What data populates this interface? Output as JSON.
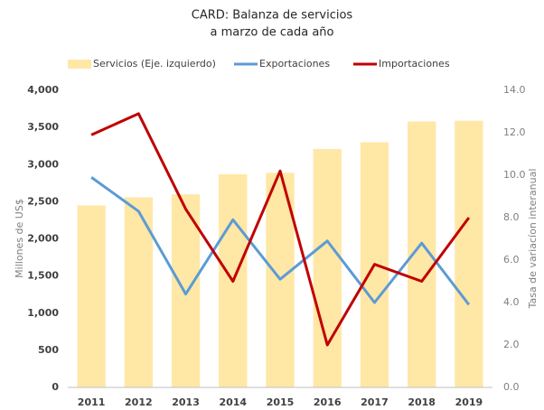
{
  "chart_data": {
    "type": "bar",
    "title": "CARD: Balanza de servicios",
    "subtitle": "a marzo de cada año",
    "ylabel": "Millones de US$",
    "y2label": "Tasa de variacíon interanual",
    "categories": [
      "2011",
      "2012",
      "2013",
      "2014",
      "2015",
      "2016",
      "2017",
      "2018",
      "2019"
    ],
    "series": [
      {
        "name": "Servicios (Eje. izquierdo)",
        "type": "bar",
        "axis": "y",
        "color": "#ffe7a6",
        "values": [
          2450,
          2560,
          2600,
          2870,
          2890,
          3210,
          3300,
          3580,
          3590
        ]
      },
      {
        "name": "Exportaciones",
        "type": "line",
        "axis": "y2",
        "color": "#5b9bd5",
        "values": [
          9.9,
          8.3,
          4.4,
          7.9,
          5.1,
          6.9,
          4.0,
          6.8,
          3.9
        ]
      },
      {
        "name": "Importaciones",
        "type": "line",
        "axis": "y2",
        "color": "#c00000",
        "values": [
          11.9,
          12.9,
          8.4,
          5.0,
          10.2,
          2.0,
          5.8,
          5.0,
          8.0
        ]
      }
    ],
    "ylim": [
      0,
      4000
    ],
    "yticks": [
      0,
      {
        "value": 500,
        "label": "500"
      },
      {
        "value": 1000,
        "label": "1,000"
      },
      {
        "value": 1500,
        "label": "1,500"
      },
      {
        "value": 2000,
        "label": "2,000"
      },
      {
        "value": 2500,
        "label": "2,500"
      },
      {
        "value": 3000,
        "label": "3,000"
      },
      {
        "value": 3500,
        "label": "3,500"
      },
      {
        "value": 4000,
        "label": "4,000"
      }
    ],
    "y2lim": [
      0,
      14
    ],
    "y2ticks": [
      {
        "value": 0,
        "label": "0.0"
      },
      {
        "value": 2,
        "label": "2.0"
      },
      {
        "value": 4,
        "label": "4.0"
      },
      {
        "value": 6,
        "label": "6.0"
      },
      {
        "value": 8,
        "label": "8.0"
      },
      {
        "value": 10,
        "label": "10.0"
      },
      {
        "value": 12,
        "label": "12.0"
      },
      {
        "value": 14,
        "label": "14.0"
      }
    ],
    "grid": false,
    "legend": "top"
  }
}
